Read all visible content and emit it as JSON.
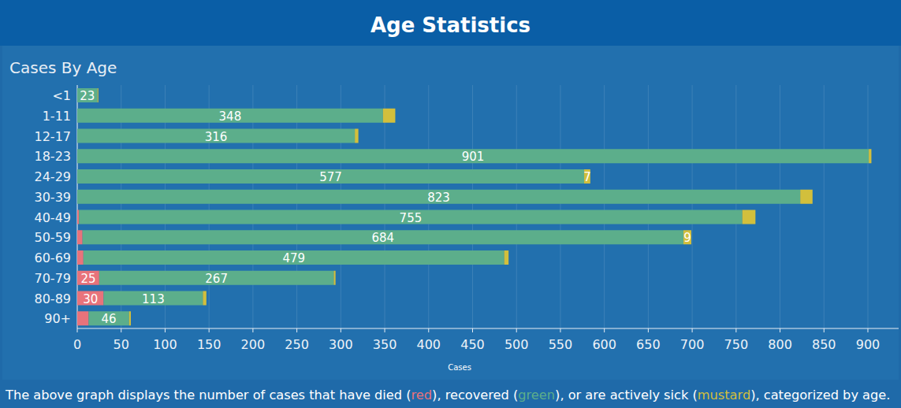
{
  "chart_data": {
    "type": "bar",
    "orientation": "horizontal",
    "stacked": true,
    "grid": true,
    "data_labels": true,
    "title": "Age Statistics",
    "subtitle": "Cases By Age",
    "xlabel": "Cases",
    "caption": [
      "The above graph displays the number of cases that have died (",
      "), recovered (",
      "), or are actively sick (",
      "), categorized by age."
    ],
    "categories": [
      "<1",
      "1-11",
      "12-17",
      "18-23",
      "24-29",
      "30-39",
      "40-49",
      "50-59",
      "60-69",
      "70-79",
      "80-89",
      "90+"
    ],
    "series": [
      {
        "name": "red",
        "color": "#e8737b",
        "values": [
          0,
          0,
          0,
          0,
          0,
          0,
          2,
          6,
          7,
          25,
          30,
          13
        ],
        "value_labels": [
          null,
          null,
          null,
          null,
          null,
          null,
          null,
          null,
          null,
          "25",
          "30",
          null
        ]
      },
      {
        "name": "green",
        "color": "#5cae8b",
        "values": [
          23,
          348,
          316,
          901,
          577,
          823,
          755,
          684,
          479,
          267,
          113,
          46
        ],
        "value_labels": [
          "23",
          "348",
          "316",
          "901",
          "577",
          "823",
          "755",
          "684",
          "479",
          "267",
          "113",
          "46"
        ]
      },
      {
        "name": "mustard",
        "color": "#d2bf3c",
        "values": [
          1,
          14,
          4,
          3,
          7,
          14,
          15,
          9,
          5,
          2,
          4,
          2
        ],
        "value_labels": [
          null,
          null,
          null,
          null,
          "7",
          null,
          null,
          "9",
          null,
          null,
          null,
          null
        ]
      }
    ],
    "xlim": [
      0,
      935
    ],
    "xticks": [
      0,
      50,
      100,
      150,
      200,
      250,
      300,
      350,
      400,
      450,
      500,
      550,
      600,
      650,
      700,
      750,
      800,
      850,
      900
    ]
  }
}
